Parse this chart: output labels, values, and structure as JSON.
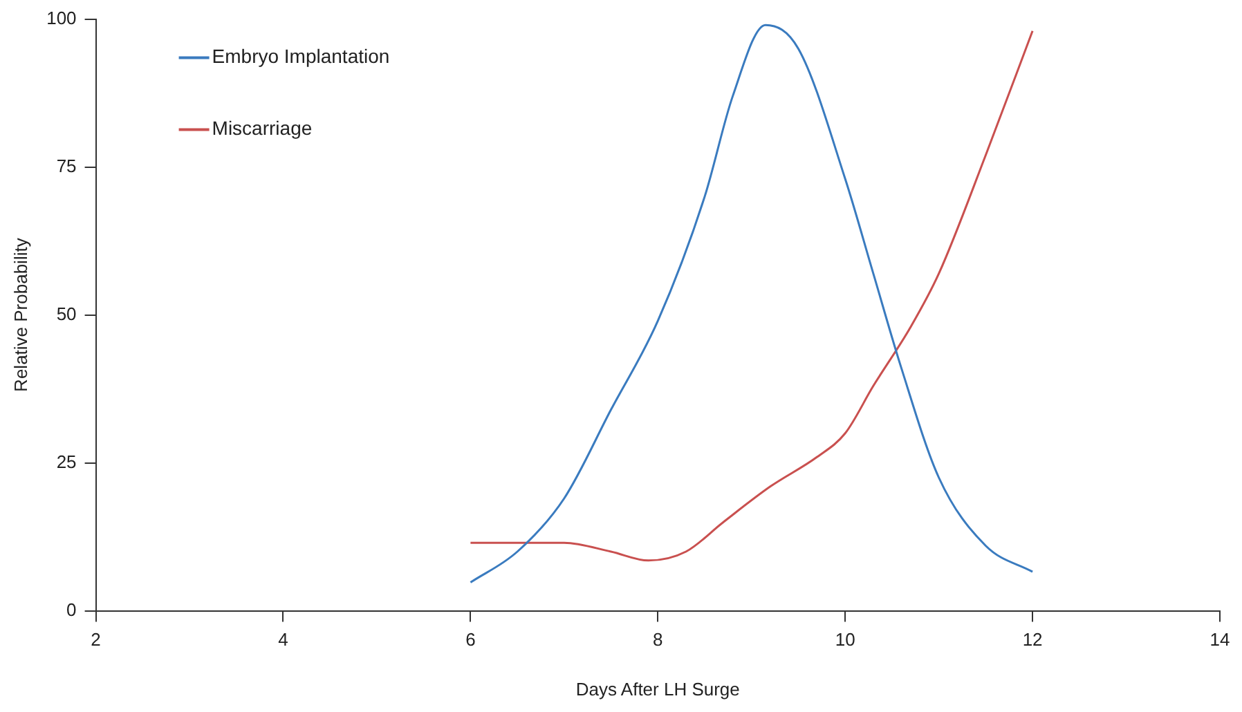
{
  "chart_data": {
    "type": "line",
    "xlabel": "Days After LH Surge",
    "ylabel": "Relative Probability",
    "xlim": [
      2,
      14
    ],
    "xticks": [
      2,
      4,
      6,
      8,
      10,
      12,
      14
    ],
    "ylim": [
      0,
      100
    ],
    "yticks": [
      0,
      25,
      50,
      75,
      100
    ],
    "grid": false,
    "legend": "top left",
    "marker": "none",
    "line_style": "solid",
    "series": [
      {
        "name": "Embryo Implantation",
        "color": "#3a7bbf",
        "x": [
          6,
          6.5,
          7,
          7.5,
          8,
          8.5,
          8.8,
          9.15,
          9.5,
          10,
          10.3,
          10.6,
          11,
          11.5,
          12
        ],
        "values": [
          4.8,
          10,
          19,
          34,
          49,
          70,
          87,
          99,
          95,
          73,
          57,
          41,
          22.5,
          11,
          6.6
        ]
      },
      {
        "name": "Miscarriage",
        "color": "#c9504f",
        "x": [
          6,
          7,
          7.5,
          7.9,
          8.3,
          8.7,
          9.2,
          9.7,
          10,
          10.3,
          10.7,
          11,
          11.5,
          12
        ],
        "values": [
          11.5,
          11.5,
          10,
          8.5,
          10,
          15,
          21,
          26,
          30,
          38,
          48,
          57,
          77,
          98
        ]
      }
    ]
  }
}
